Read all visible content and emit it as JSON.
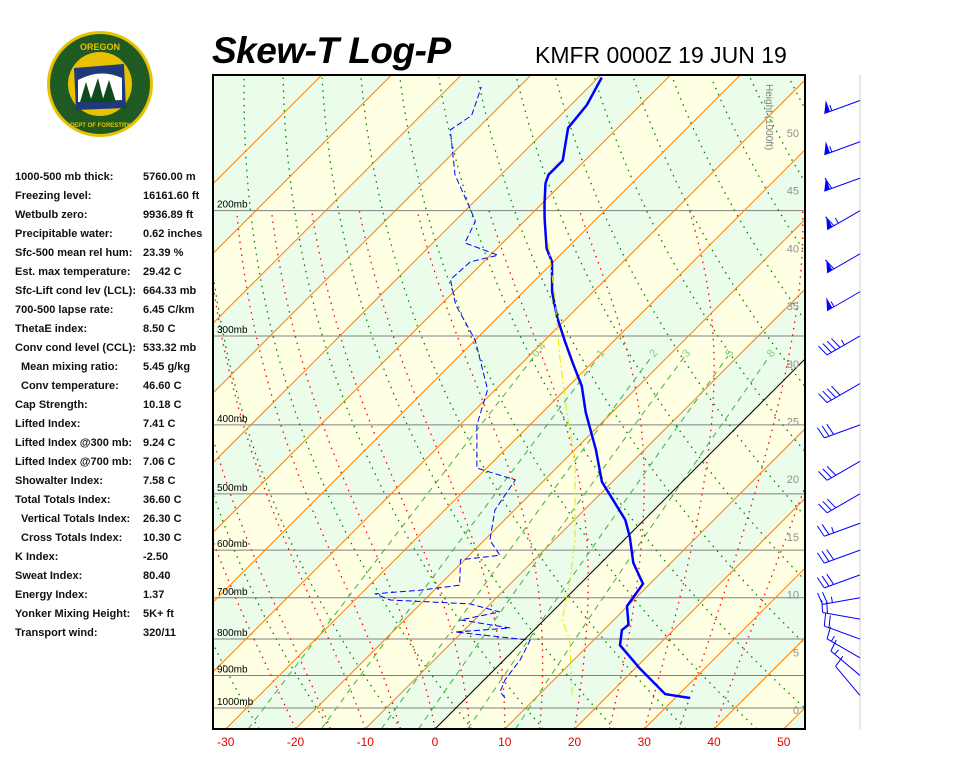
{
  "header": {
    "title": "Skew-T Log-P",
    "subtitle": "KMFR 0000Z 19 JUN 19"
  },
  "logo": {
    "top_text": "OREGON",
    "bottom_text": "DEPARTMENT OF FORESTRY"
  },
  "indices": [
    {
      "label": "1000-500 mb thick:",
      "value": "5760.00 m"
    },
    {
      "label": "Freezing level:",
      "value": "16161.60 ft"
    },
    {
      "label": "Wetbulb zero:",
      "value": "9936.89 ft"
    },
    {
      "label": "Precipitable water:",
      "value": "0.62 inches"
    },
    {
      "label": "Sfc-500 mean rel hum:",
      "value": "23.39 %"
    },
    {
      "label": "Est. max temperature:",
      "value": "29.42 C"
    },
    {
      "label": "Sfc-Lift cond lev (LCL):",
      "value": "664.33 mb"
    },
    {
      "label": "700-500 lapse rate:",
      "value": "6.45 C/km"
    },
    {
      "label": "ThetaE index:",
      "value": "8.50 C"
    },
    {
      "label": "Conv cond level (CCL):",
      "value": "533.32 mb"
    },
    {
      "label": "Mean mixing ratio:",
      "value": "5.45 g/kg",
      "indent": true
    },
    {
      "label": "Conv temperature:",
      "value": "46.60 C",
      "indent": true
    },
    {
      "label": "Cap Strength:",
      "value": "10.18 C"
    },
    {
      "label": "Lifted Index:",
      "value": "7.41 C"
    },
    {
      "label": "Lifted Index @300 mb:",
      "value": "9.24 C"
    },
    {
      "label": "Lifted Index @700 mb:",
      "value": "7.06 C"
    },
    {
      "label": "Showalter Index:",
      "value": "7.58 C"
    },
    {
      "label": "Total Totals Index:",
      "value": "36.60 C"
    },
    {
      "label": "Vertical Totals Index:",
      "value": "26.30 C",
      "indent": true
    },
    {
      "label": "Cross Totals Index:",
      "value": "10.30 C",
      "indent": true
    },
    {
      "label": "K Index:",
      "value": "-2.50"
    },
    {
      "label": "Sweat Index:",
      "value": "80.40"
    },
    {
      "label": "Energy Index:",
      "value": "1.37"
    },
    {
      "label": "Yonker Mixing Height:",
      "value": "5K+ ft"
    },
    {
      "label": "Transport wind:",
      "value": "320/11"
    }
  ],
  "chart_data": {
    "type": "line",
    "subtype": "skew-t log-p",
    "xlim": [
      -30,
      50
    ],
    "ylim_mb": [
      1070,
      129
    ],
    "x_ticks": [
      -30,
      -20,
      -10,
      0,
      10,
      20,
      30,
      40,
      50
    ],
    "pressure_levels": [
      {
        "p": 200,
        "label": "200mb"
      },
      {
        "p": 300,
        "label": "300mb"
      },
      {
        "p": 400,
        "label": "400mb"
      },
      {
        "p": 500,
        "label": "500mb"
      },
      {
        "p": 600,
        "label": "600mb"
      },
      {
        "p": 700,
        "label": "700mb"
      },
      {
        "p": 800,
        "label": "800mb"
      },
      {
        "p": 900,
        "label": "900mb"
      },
      {
        "p": 1000,
        "label": "1000mb"
      }
    ],
    "height_axis": {
      "label": "Height (1000ft)",
      "ticks": [
        0,
        5,
        10,
        15,
        20,
        25,
        30,
        35,
        40,
        45,
        50
      ]
    },
    "mixing_ratio_labels": [
      "0.4",
      "1",
      "2",
      "3",
      "5",
      "8"
    ],
    "mixing_ratios": [
      0.4,
      1,
      2,
      3,
      5,
      8
    ],
    "colors": {
      "temperature": "#0000ff",
      "dewpoint": "#0000ff",
      "parcel": "#e6e600",
      "isotherm": "#ff8000",
      "zero_isotherm": "#000000",
      "dry_adiabat": "#008000",
      "moist_adiabat": "#ff0000",
      "mixing_ratio": "#40b040",
      "band_a": "#ffffe4",
      "band_b": "#ebfcea"
    },
    "series": [
      {
        "id": "temperature",
        "style": "solid-thick",
        "points": [
          [
            968,
            32.1
          ],
          [
            956,
            28.0
          ],
          [
            879,
            20.6
          ],
          [
            816,
            14.5
          ],
          [
            777,
            12.6
          ],
          [
            764,
            12.8
          ],
          [
            719,
            9.9
          ],
          [
            669,
            9.0
          ],
          [
            625,
            4.6
          ],
          [
            575,
            0.4
          ],
          [
            544,
            -2.7
          ],
          [
            481,
            -11.5
          ],
          [
            434,
            -16.9
          ],
          [
            384,
            -23.8
          ],
          [
            353,
            -28.1
          ],
          [
            327,
            -32.8
          ],
          [
            306,
            -36.8
          ],
          [
            283,
            -41.4
          ],
          [
            260,
            -45.9
          ],
          [
            236,
            -50.2
          ],
          [
            226,
            -52.9
          ],
          [
            205,
            -57.5
          ],
          [
            196,
            -59.5
          ],
          [
            183,
            -62.4
          ],
          [
            178,
            -63.2
          ],
          [
            170,
            -63.2
          ],
          [
            153,
            -67.1
          ],
          [
            142,
            -67.7
          ],
          [
            130,
            -69.5
          ]
        ]
      },
      {
        "id": "dewpoint",
        "style": "dashed",
        "points": [
          [
            968,
            5.6
          ],
          [
            949,
            4.0
          ],
          [
            913,
            3.0
          ],
          [
            856,
            2.3
          ],
          [
            803,
            0.9
          ],
          [
            782,
            -11.0
          ],
          [
            772,
            -3.7
          ],
          [
            752,
            -12.0
          ],
          [
            733,
            -7.5
          ],
          [
            714,
            -12.9
          ],
          [
            705,
            -24.9
          ],
          [
            691,
            -28.0
          ],
          [
            683,
            -22.1
          ],
          [
            672,
            -17.1
          ],
          [
            619,
            -20.6
          ],
          [
            610,
            -15.6
          ],
          [
            581,
            -19.2
          ],
          [
            527,
            -22.8
          ],
          [
            478,
            -24.2
          ],
          [
            460,
            -31.4
          ],
          [
            400,
            -37.6
          ],
          [
            357,
            -41.1
          ],
          [
            304,
            -50.0
          ],
          [
            271,
            -57.9
          ],
          [
            250,
            -62.2
          ],
          [
            236,
            -61.9
          ],
          [
            231,
            -58.9
          ],
          [
            222,
            -65.4
          ],
          [
            207,
            -67.0
          ],
          [
            198,
            -69.8
          ],
          [
            178,
            -76.6
          ],
          [
            154,
            -83.7
          ],
          [
            147,
            -82.7
          ],
          [
            134,
            -85.4
          ]
        ]
      },
      {
        "id": "parcel",
        "style": "dash-dot",
        "points": [
          [
            959,
            14.8
          ],
          [
            803,
            6.6
          ],
          [
            752,
            2.6
          ],
          [
            661,
            -2.0
          ],
          [
            581,
            -7.0
          ],
          [
            448,
            -18.5
          ],
          [
            394,
            -25.2
          ],
          [
            324,
            -35.0
          ],
          [
            267,
            -44.3
          ],
          [
            220,
            -53.9
          ]
        ]
      }
    ],
    "winds": [
      {
        "p": 960,
        "dir": 320,
        "kt": 10
      },
      {
        "p": 900,
        "dir": 310,
        "kt": 15
      },
      {
        "p": 850,
        "dir": 300,
        "kt": 15
      },
      {
        "p": 800,
        "dir": 290,
        "kt": 20
      },
      {
        "p": 750,
        "dir": 280,
        "kt": 20
      },
      {
        "p": 700,
        "dir": 260,
        "kt": 25
      },
      {
        "p": 650,
        "dir": 250,
        "kt": 30
      },
      {
        "p": 600,
        "dir": 250,
        "kt": 30
      },
      {
        "p": 550,
        "dir": 250,
        "kt": 25
      },
      {
        "p": 500,
        "dir": 240,
        "kt": 30
      },
      {
        "p": 450,
        "dir": 240,
        "kt": 30
      },
      {
        "p": 400,
        "dir": 250,
        "kt": 30
      },
      {
        "p": 350,
        "dir": 240,
        "kt": 40
      },
      {
        "p": 300,
        "dir": 240,
        "kt": 45
      },
      {
        "p": 260,
        "dir": 240,
        "kt": 55
      },
      {
        "p": 230,
        "dir": 240,
        "kt": 60
      },
      {
        "p": 200,
        "dir": 240,
        "kt": 65
      },
      {
        "p": 180,
        "dir": 250,
        "kt": 60
      },
      {
        "p": 160,
        "dir": 250,
        "kt": 55
      },
      {
        "p": 140,
        "dir": 250,
        "kt": 55
      }
    ]
  }
}
